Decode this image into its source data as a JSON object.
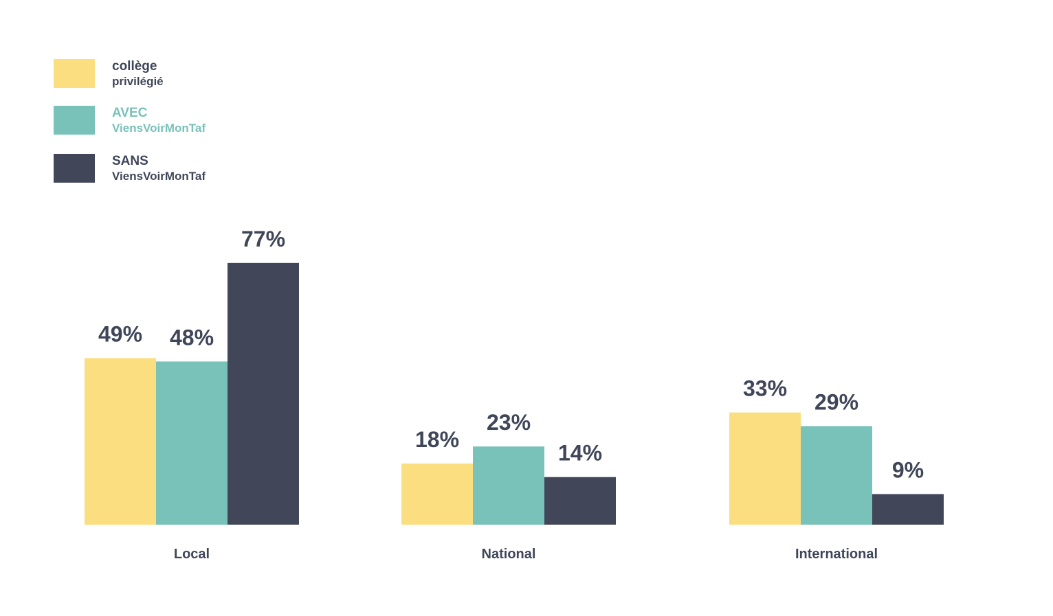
{
  "chart_data": {
    "type": "bar",
    "categories": [
      "Local",
      "National",
      "International"
    ],
    "series": [
      {
        "name_lines": [
          "collège",
          "privilégié"
        ],
        "color": "#fbde80",
        "label_color": "#3f4658",
        "values": [
          49,
          18,
          33
        ],
        "value_labels": [
          "49%",
          "18%",
          "33%"
        ]
      },
      {
        "name_lines": [
          "AVEC",
          "ViensVoirMonTaf"
        ],
        "color": "#78c2b9",
        "label_color": "#78c2b9",
        "values": [
          48,
          23,
          29
        ],
        "value_labels": [
          "48%",
          "23%",
          "29%"
        ]
      },
      {
        "name_lines": [
          "SANS",
          "ViensVoirMonTaf"
        ],
        "color": "#414759",
        "label_color": "#3f4658",
        "values": [
          77,
          14,
          9
        ],
        "value_labels": [
          "77%",
          "14%",
          "9%"
        ]
      }
    ],
    "value_unit": "%",
    "ylim": [
      0,
      100
    ],
    "grid": false,
    "legend_position": "top-left",
    "text_color": "#3f4658"
  }
}
